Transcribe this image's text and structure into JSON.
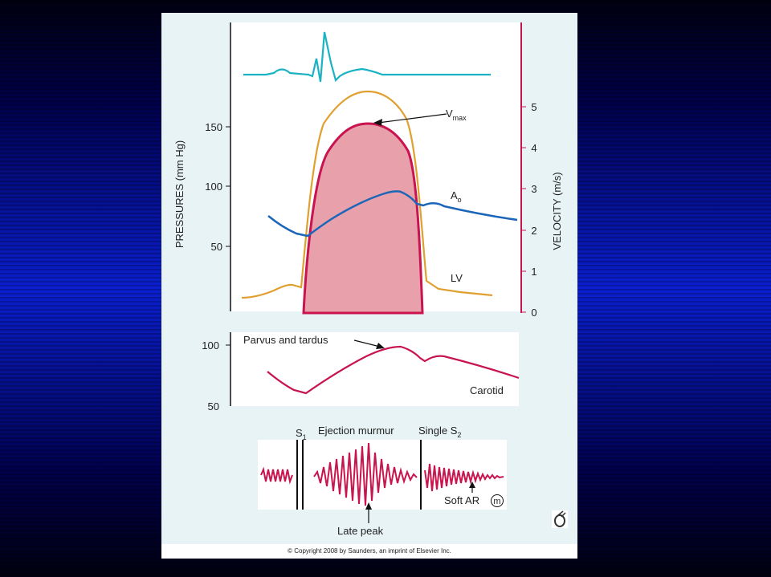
{
  "figure": {
    "left_axis_label": "PRESSURES (mm Hg)",
    "left_ticks": [
      "150",
      "100",
      "50"
    ],
    "right_axis_label": "VELOCITY (m/s)",
    "right_ticks": [
      "5",
      "4",
      "3",
      "2",
      "1",
      "0"
    ],
    "vmax_label": "V",
    "vmax_sub": "max",
    "ao_label": "A",
    "ao_sub": "o",
    "lv_label": "LV",
    "carotid_panel": {
      "ticks": [
        "100",
        "50"
      ],
      "parvus_label": "Parvus and tardus",
      "carotid_label": "Carotid"
    },
    "murmur_panel": {
      "s1_label": "S",
      "s1_sub": "1",
      "ejection_label": "Ejection murmur",
      "s2_label": "Single S",
      "s2_sub": "2",
      "soft_ar_label": "Soft AR",
      "soft_ar_symbol": "m",
      "late_peak_label": "Late peak"
    }
  },
  "copyright": "© Copyright 2008 by Saunders, an imprint of Elsevier Inc.",
  "colors": {
    "ecg": "#1ab3c4",
    "lv_pressure": "#e0a030",
    "aortic_pressure": "#1b66b8",
    "velocity": "#c8144f",
    "velocity_fill": "#e8a0ab",
    "right_axis": "#c8144f"
  }
}
